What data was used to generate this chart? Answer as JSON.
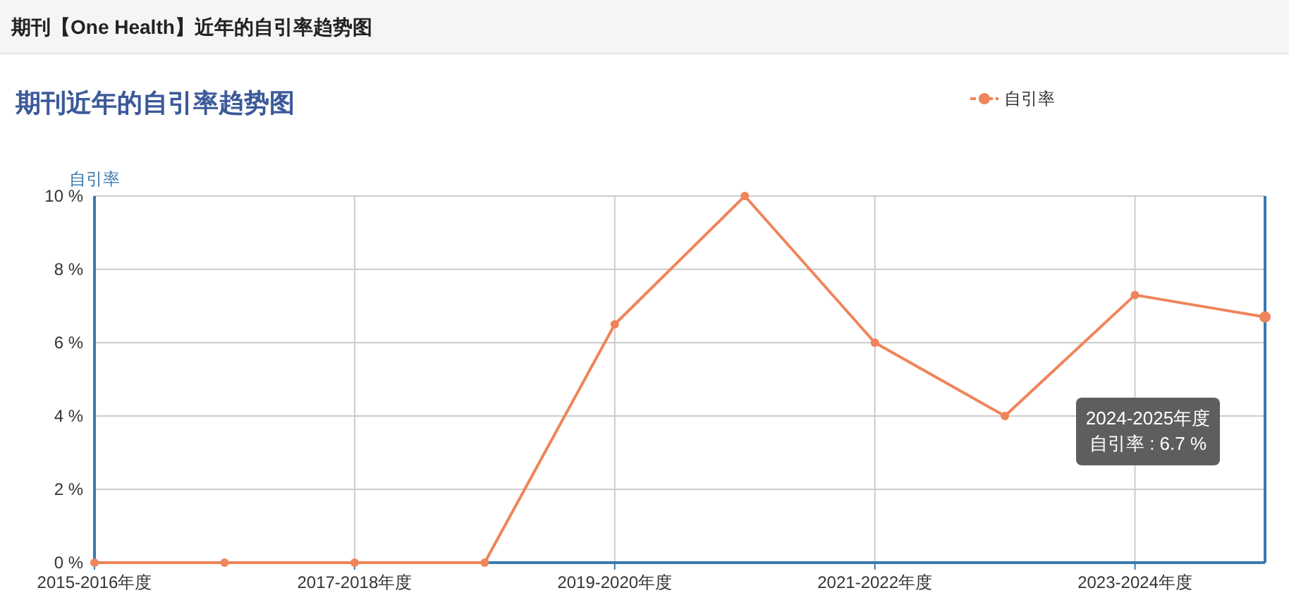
{
  "chart_data": {
    "type": "line",
    "title": "期刊【One Health】近年的自引率趋势图",
    "subtitle": "期刊近年的自引率趋势图",
    "ylabel": "自引率",
    "categories": [
      "2015-2016年度",
      null,
      "2017-2018年度",
      null,
      "2019-2020年度",
      null,
      "2021-2022年度",
      null,
      "2023-2024年度",
      null
    ],
    "series": [
      {
        "name": "自引率",
        "color": "#f0845a",
        "values": [
          0,
          0,
          0,
          0,
          6.5,
          10,
          6,
          4,
          7.3,
          6.7
        ]
      }
    ],
    "ylim": [
      0,
      10
    ],
    "yticks": [
      {
        "value": 0,
        "label": "0 %"
      },
      {
        "value": 2,
        "label": "2 %"
      },
      {
        "value": 4,
        "label": "4 %"
      },
      {
        "value": 6,
        "label": "6 %"
      },
      {
        "value": 8,
        "label": "8 %"
      },
      {
        "value": 10,
        "label": "10 %"
      }
    ],
    "grid": true,
    "legend": "top right",
    "marker": "circle",
    "line_style": "solid",
    "annotations": [
      "2024-2025年度",
      "自引率 : 6.7 %"
    ]
  }
}
